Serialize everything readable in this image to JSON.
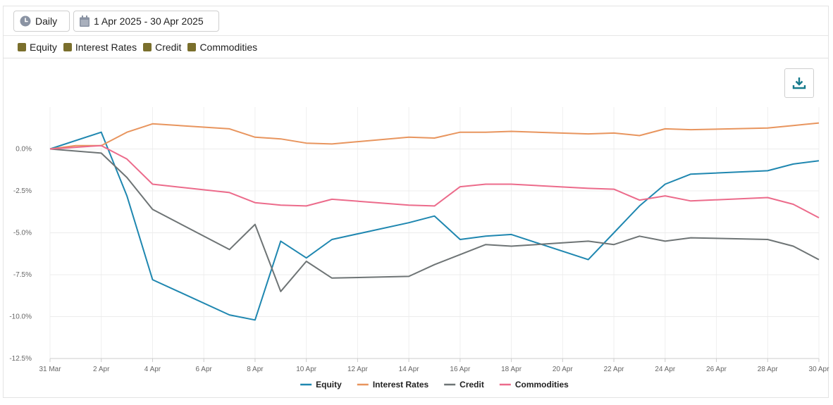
{
  "toolbar": {
    "frequency_label": "Daily",
    "frequency_icon": "clock-icon",
    "date_range_label": "1 Apr 2025 - 30 Apr 2025",
    "date_range_icon": "calendar-icon"
  },
  "filters": [
    {
      "label": "Equity",
      "color": "#7a6f2c"
    },
    {
      "label": "Interest Rates",
      "color": "#7a6f2c"
    },
    {
      "label": "Credit",
      "color": "#7a6f2c"
    },
    {
      "label": "Commodities",
      "color": "#7a6f2c"
    }
  ],
  "download_icon": "download-icon",
  "chart_data": {
    "type": "line",
    "grid": true,
    "legend_position": "bottom",
    "ylim": [
      -12.5,
      2.5
    ],
    "yticks": [
      0,
      -2.5,
      -5,
      -7.5,
      -10,
      -12.5
    ],
    "ytick_labels": [
      "0.0%",
      "-2.5%",
      "-5.0%",
      "-7.5%",
      "-10.0%",
      "-12.5%"
    ],
    "x_start": "2025-03-31",
    "xtick_days": [
      0,
      2,
      4,
      6,
      8,
      10,
      12,
      14,
      16,
      18,
      20,
      22,
      24,
      26,
      28,
      30
    ],
    "xtick_labels": [
      "31 Mar",
      "2 Apr",
      "4 Apr",
      "6 Apr",
      "8 Apr",
      "10 Apr",
      "12 Apr",
      "14 Apr",
      "16 Apr",
      "18 Apr",
      "20 Apr",
      "22 Apr",
      "24 Apr",
      "26 Apr",
      "28 Apr",
      "30 Apr"
    ],
    "series": [
      {
        "name": "Equity",
        "color": "#1f87b0",
        "x": [
          0,
          2,
          3,
          4,
          7,
          8,
          9,
          10,
          11,
          14,
          15,
          16,
          17,
          18,
          21,
          22,
          23,
          24,
          25,
          28,
          29,
          30
        ],
        "values": [
          0,
          1.0,
          -2.8,
          -7.8,
          -9.9,
          -10.2,
          -5.5,
          -6.5,
          -5.4,
          -4.4,
          -4.0,
          -5.4,
          -5.2,
          -5.1,
          -6.6,
          -5.0,
          -3.4,
          -2.1,
          -1.5,
          -1.3,
          -0.9,
          -0.7
        ]
      },
      {
        "name": "Interest Rates",
        "color": "#e8955e",
        "x": [
          0,
          1,
          2,
          3,
          4,
          7,
          8,
          9,
          10,
          11,
          14,
          15,
          16,
          17,
          18,
          21,
          22,
          23,
          24,
          25,
          28,
          29,
          30
        ],
        "values": [
          0,
          0.2,
          0.2,
          1.0,
          1.5,
          1.2,
          0.7,
          0.6,
          0.35,
          0.3,
          0.7,
          0.65,
          1.0,
          1.0,
          1.05,
          0.9,
          0.95,
          0.8,
          1.2,
          1.15,
          1.25,
          1.4,
          1.55
        ]
      },
      {
        "name": "Credit",
        "color": "#6e7475",
        "x": [
          0,
          2,
          3,
          4,
          7,
          8,
          9,
          10,
          11,
          14,
          15,
          16,
          17,
          18,
          21,
          22,
          23,
          24,
          25,
          28,
          29,
          30
        ],
        "values": [
          0,
          -0.25,
          -1.7,
          -3.6,
          -6.0,
          -4.5,
          -8.5,
          -6.7,
          -7.7,
          -7.6,
          -6.9,
          -6.3,
          -5.7,
          -5.8,
          -5.5,
          -5.7,
          -5.2,
          -5.5,
          -5.3,
          -5.4,
          -5.8,
          -6.6
        ]
      },
      {
        "name": "Commodities",
        "color": "#ec6b8b",
        "x": [
          0,
          2,
          3,
          4,
          7,
          8,
          9,
          10,
          11,
          14,
          15,
          16,
          17,
          18,
          21,
          22,
          23,
          24,
          25,
          28,
          29,
          30
        ],
        "values": [
          0,
          0.2,
          -0.6,
          -2.1,
          -2.6,
          -3.2,
          -3.35,
          -3.4,
          -3.0,
          -3.35,
          -3.4,
          -2.25,
          -2.1,
          -2.1,
          -2.35,
          -2.4,
          -3.05,
          -2.8,
          -3.1,
          -2.9,
          -3.3,
          -4.1
        ]
      }
    ]
  }
}
